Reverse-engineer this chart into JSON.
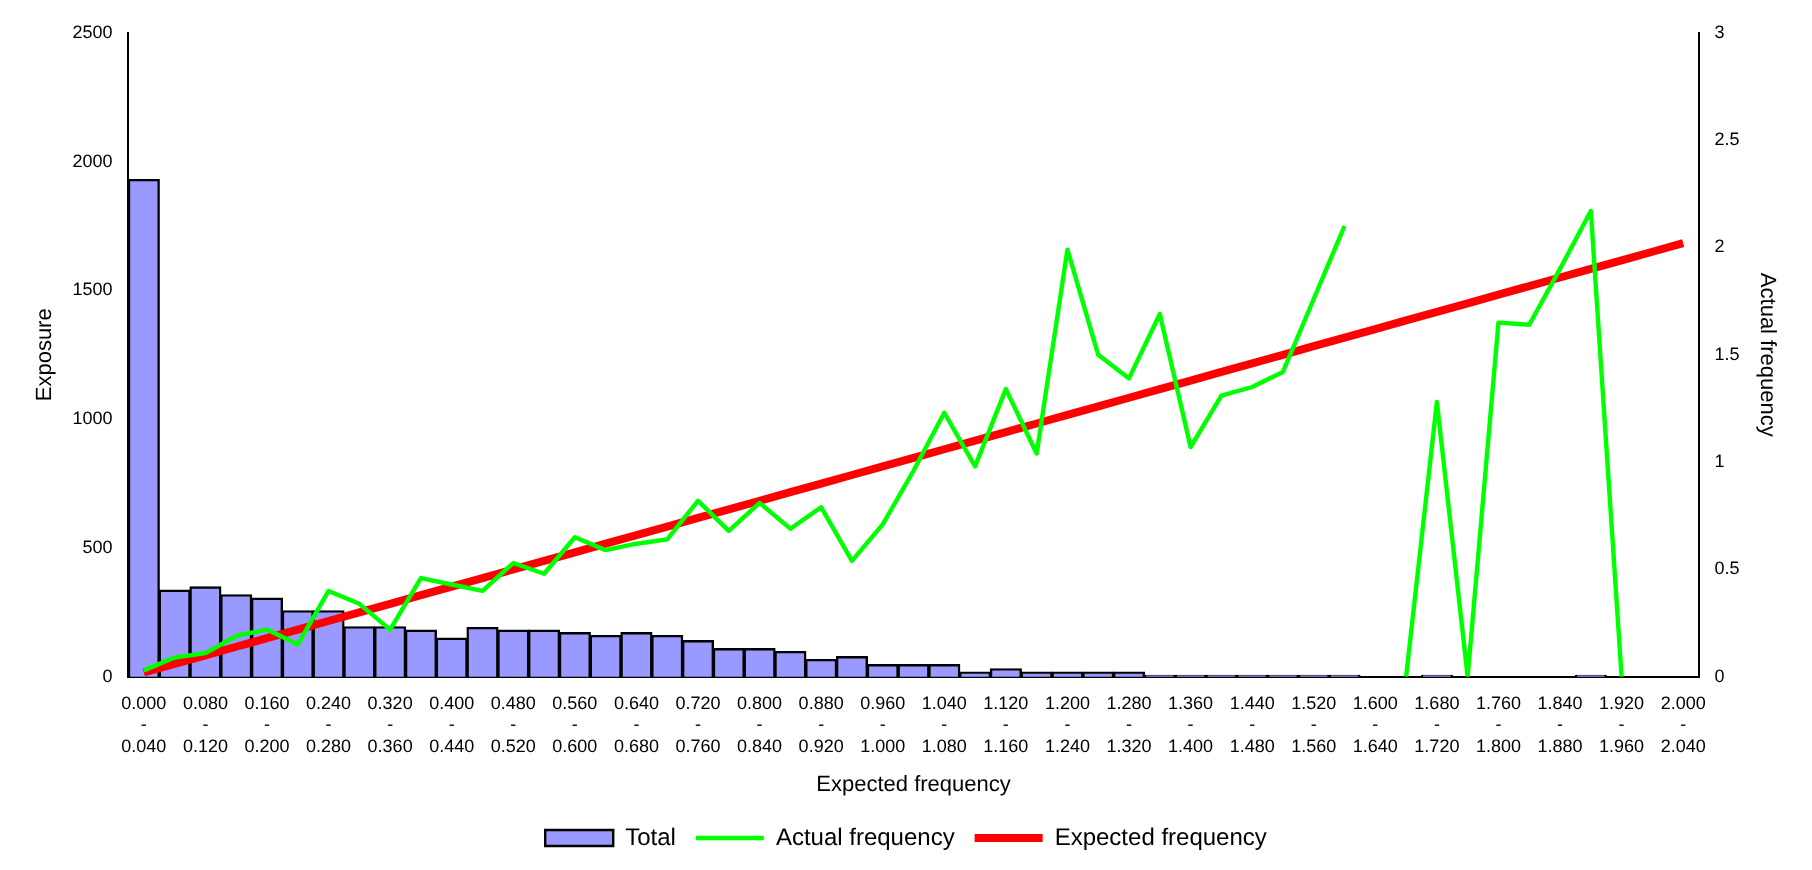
{
  "chart_data": {
    "type": "bar",
    "xlabel": "Expected frequency",
    "ylabel": "Exposure",
    "y2label": "Actual frequency",
    "categories": [
      "0.000 - 0.040",
      null,
      "0.080 - 0.120",
      null,
      "0.160 - 0.200",
      null,
      "0.240 - 0.280",
      null,
      "0.320 - 0.360",
      null,
      "0.400 - 0.440",
      null,
      "0.480 - 0.520",
      null,
      "0.560 - 0.600",
      null,
      "0.640 - 0.680",
      null,
      "0.720 - 0.760",
      null,
      "0.800 - 0.840",
      null,
      "0.880 - 0.920",
      null,
      "0.960 - 1.000",
      null,
      "1.040 - 1.080",
      null,
      "1.120 - 1.160",
      null,
      "1.200 - 1.240",
      null,
      "1.280 - 1.320",
      null,
      "1.360 - 1.400",
      null,
      "1.440 - 1.480",
      null,
      "1.520 - 1.560",
      null,
      "1.600 - 1.640",
      null,
      "1.680 - 1.720",
      null,
      "1.760 - 1.800",
      null,
      "1.840 - 1.880",
      null,
      "1.920 - 1.960",
      null,
      "2.000 - 2.040"
    ],
    "series": [
      {
        "name": "Total",
        "color": "#9999ff",
        "values": [
          1930,
          336,
          349,
          318,
          305,
          256,
          256,
          194,
          194,
          181,
          150,
          191,
          181,
          181,
          171,
          160,
          171,
          160,
          140,
          109,
          109,
          98,
          67,
          78,
          47,
          47,
          47,
          18,
          31,
          18,
          18,
          18,
          18,
          5,
          5,
          5,
          5,
          5,
          5,
          5,
          0,
          0,
          5,
          0,
          0,
          0,
          0,
          5,
          0,
          0,
          0
        ]
      },
      {
        "name": "Actual frequency",
        "type": "line",
        "axis": "y2",
        "color": "#00ff00",
        "values": [
          0.03,
          0.09,
          0.11,
          0.19,
          0.22,
          0.15,
          0.4,
          0.34,
          0.22,
          0.46,
          0.43,
          0.4,
          0.53,
          0.48,
          0.65,
          0.59,
          0.62,
          0.64,
          0.82,
          0.68,
          0.81,
          0.69,
          0.79,
          0.54,
          0.71,
          0.96,
          1.23,
          0.98,
          1.34,
          1.04,
          1.99,
          1.5,
          1.39,
          1.69,
          1.07,
          1.31,
          1.35,
          1.42,
          1.76,
          2.1,
          null,
          0,
          1.28,
          0,
          1.65,
          1.64,
          1.9,
          2.17,
          0,
          null,
          null
        ]
      },
      {
        "name": "Expected frequency",
        "type": "line",
        "axis": "y2",
        "color": "#ff0000",
        "values": [
          0.02,
          0.06,
          0.1,
          0.14,
          0.18,
          0.22,
          0.26,
          0.3,
          0.34,
          0.38,
          0.42,
          0.46,
          0.5,
          0.54,
          0.58,
          0.62,
          0.66,
          0.7,
          0.74,
          0.78,
          0.82,
          0.86,
          0.9,
          0.94,
          0.98,
          1.02,
          1.06,
          1.1,
          1.14,
          1.18,
          1.22,
          1.26,
          1.3,
          1.34,
          1.38,
          1.42,
          1.46,
          1.5,
          1.54,
          1.58,
          1.62,
          1.66,
          1.7,
          1.74,
          1.78,
          1.82,
          1.86,
          1.9,
          1.94,
          1.98,
          2.02
        ]
      }
    ],
    "ylim": [
      0,
      2500
    ],
    "yticks": [
      0,
      500,
      1000,
      1500,
      2000,
      2500
    ],
    "y2lim": [
      0,
      3
    ],
    "y2ticks": [
      0,
      0.5,
      1,
      1.5,
      2,
      2.5,
      3
    ],
    "grid": false,
    "legend": "bottom",
    "marker": "none",
    "line_style": "solid"
  }
}
